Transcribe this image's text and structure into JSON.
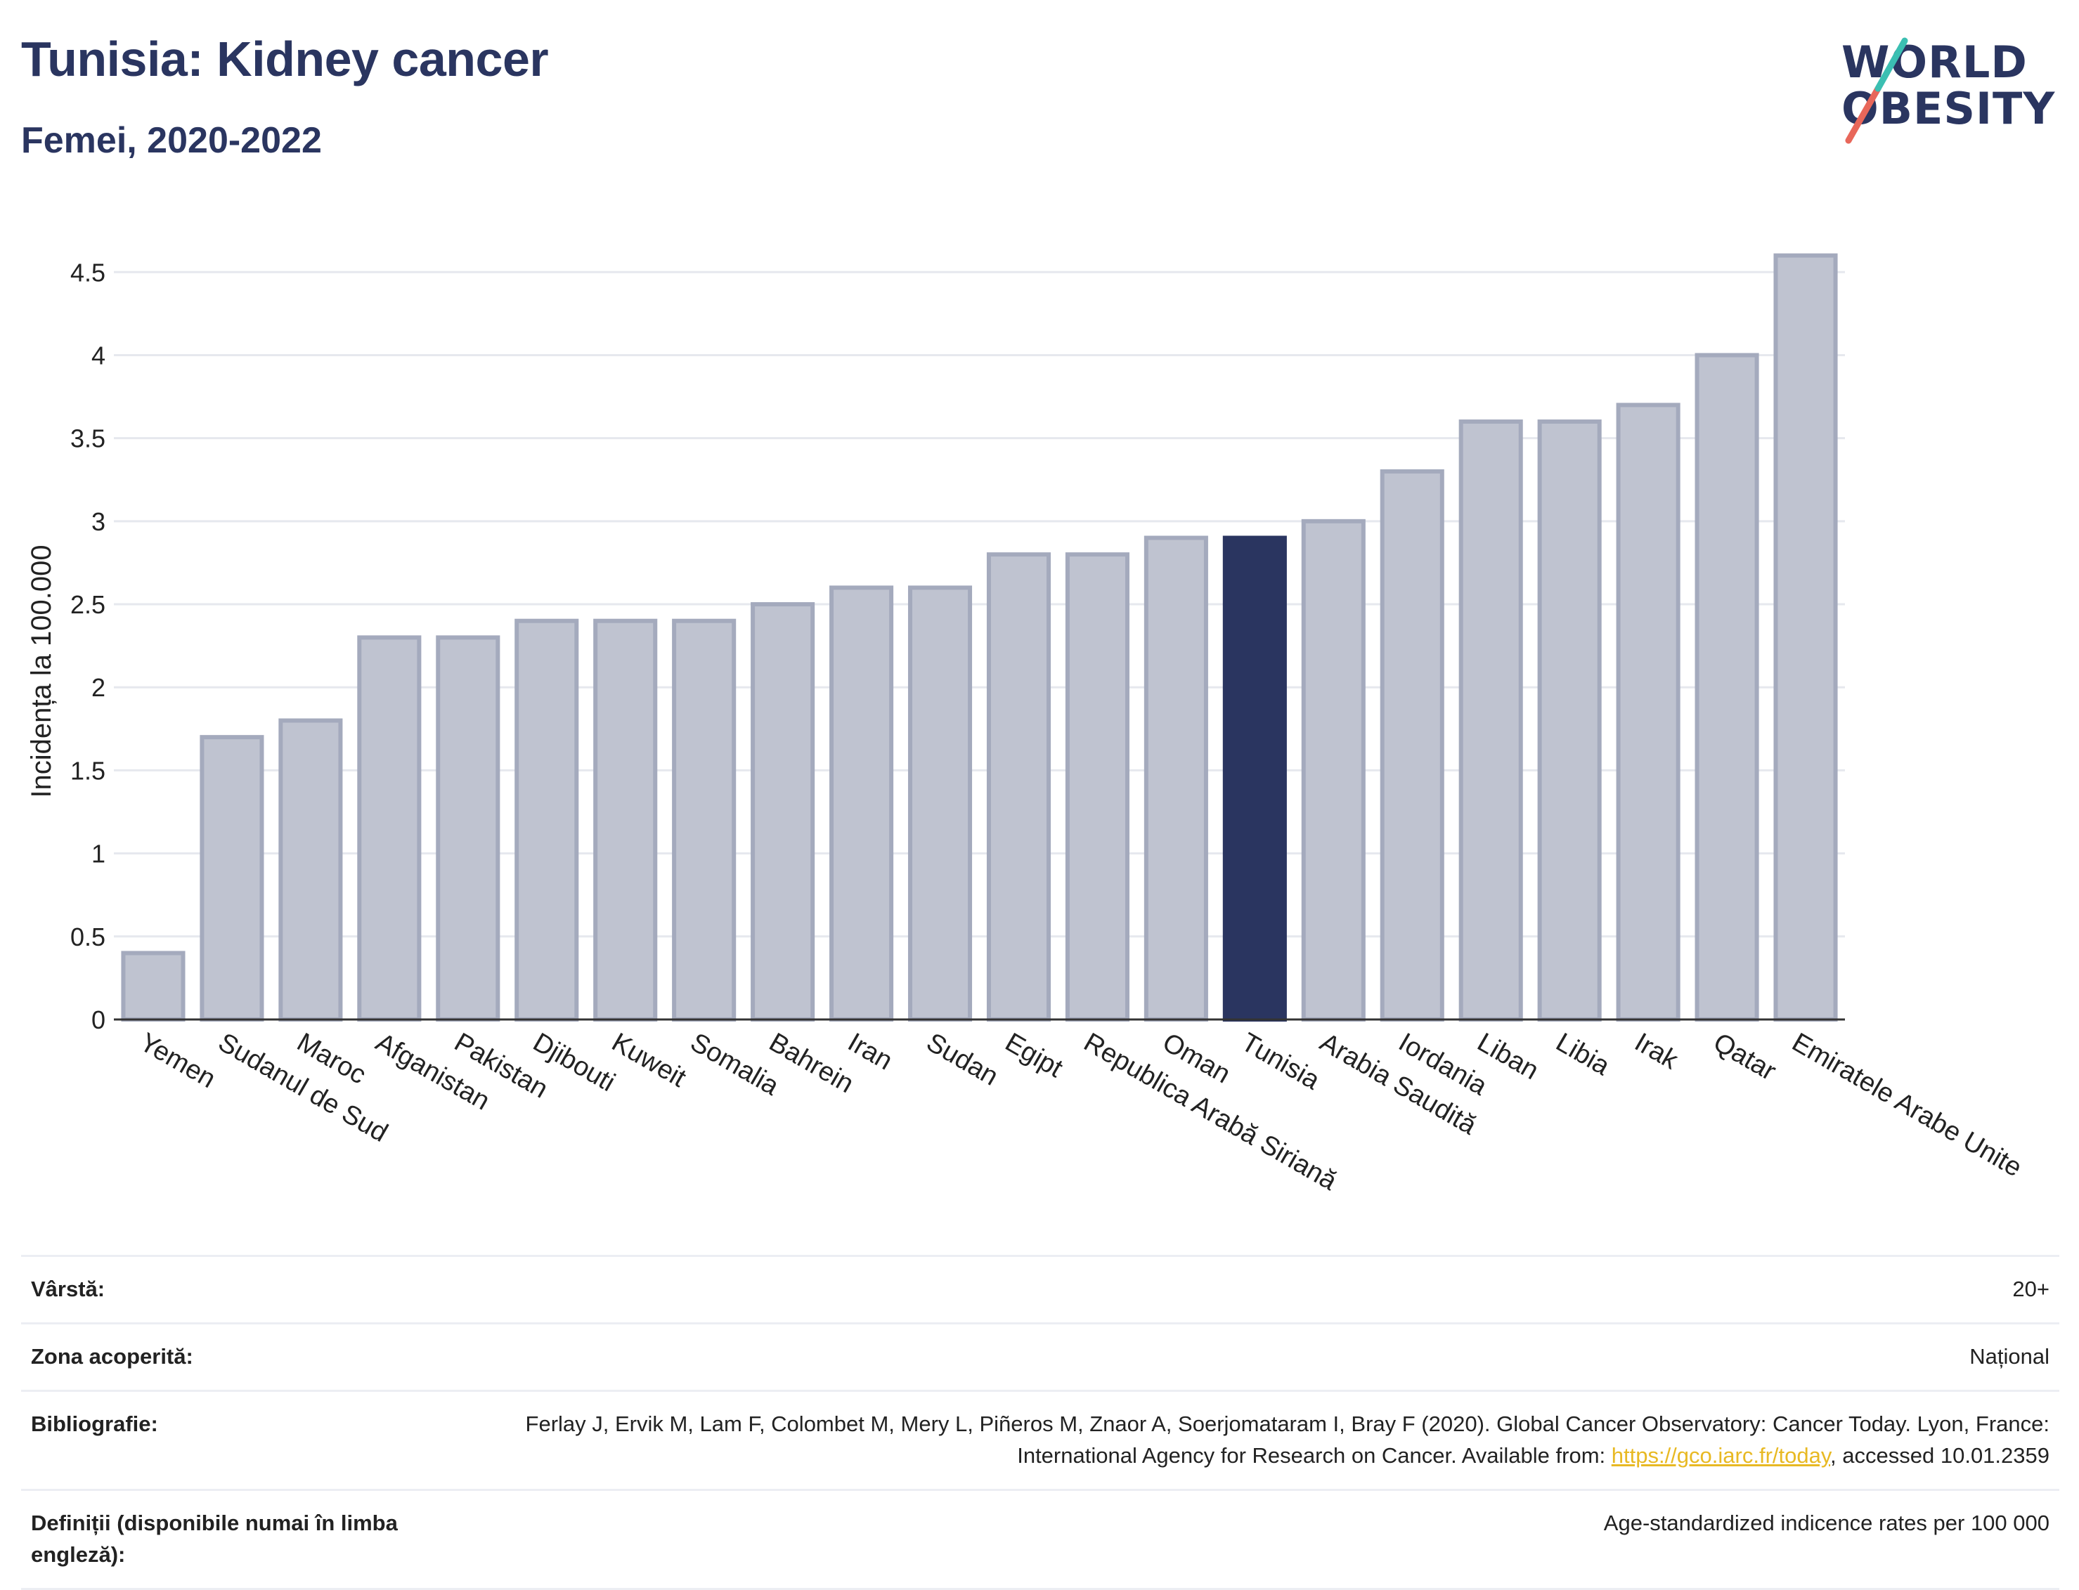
{
  "header": {
    "title": "Tunisia: Kidney cancer",
    "subtitle": "Femei, 2020-2022"
  },
  "logo": {
    "line1": "WORLD",
    "line2": "OBESITY",
    "slash_colors": [
      "#e8675a",
      "#3bbfb2"
    ]
  },
  "colors": {
    "bar_default": "#bfc3d0",
    "bar_default_border": "#a4aabd",
    "bar_highlight": "#2a3560",
    "grid": "#e6e8ee",
    "axis": "#333333"
  },
  "chart_data": {
    "type": "bar",
    "ylabel": "Incidența la 100.000",
    "ylim": [
      0,
      4.7
    ],
    "yticks": [
      0,
      0.5,
      1,
      1.5,
      2,
      2.5,
      3,
      3.5,
      4,
      4.5
    ],
    "ytick_labels": [
      "0",
      "0.5",
      "1",
      "1.5",
      "2",
      "2.5",
      "3",
      "3.5",
      "4",
      "4.5"
    ],
    "grid": true,
    "highlight": "Tunisia",
    "categories": [
      "Yemen",
      "Sudanul de Sud",
      "Maroc",
      "Afganistan",
      "Pakistan",
      "Djibouti",
      "Kuweit",
      "Somalia",
      "Bahrein",
      "Iran",
      "Sudan",
      "Egipt",
      "Republica Arabă Siriană",
      "Oman",
      "Tunisia",
      "Arabia Saudită",
      "Iordania",
      "Liban",
      "Libia",
      "Irak",
      "Qatar",
      "Emiratele Arabe Unite"
    ],
    "values": [
      0.4,
      1.7,
      1.8,
      2.3,
      2.3,
      2.4,
      2.4,
      2.4,
      2.5,
      2.6,
      2.6,
      2.8,
      2.8,
      2.9,
      2.9,
      3.0,
      3.3,
      3.6,
      3.6,
      3.7,
      4.0,
      4.6
    ]
  },
  "info": {
    "rows": [
      {
        "label": "Vârstă:",
        "value": "20+"
      },
      {
        "label": "Zona acoperită:",
        "value": "Național"
      },
      {
        "label": "Bibliografie:",
        "value_before": "Ferlay J, Ervik M, Lam F, Colombet M, Mery L, Piñeros M, Znaor A, Soerjomataram I, Bray F (2020). Global Cancer Observatory: Cancer Today. Lyon, France: International Agency for Research on Cancer. Available from: ",
        "link": "https://gco.iarc.fr/today",
        "value_after": ", accessed 10.01.2359"
      },
      {
        "label": "Definiții (disponibile numai în limba engleză):",
        "value": "Age-standardized indicence rates per 100 000"
      }
    ]
  }
}
